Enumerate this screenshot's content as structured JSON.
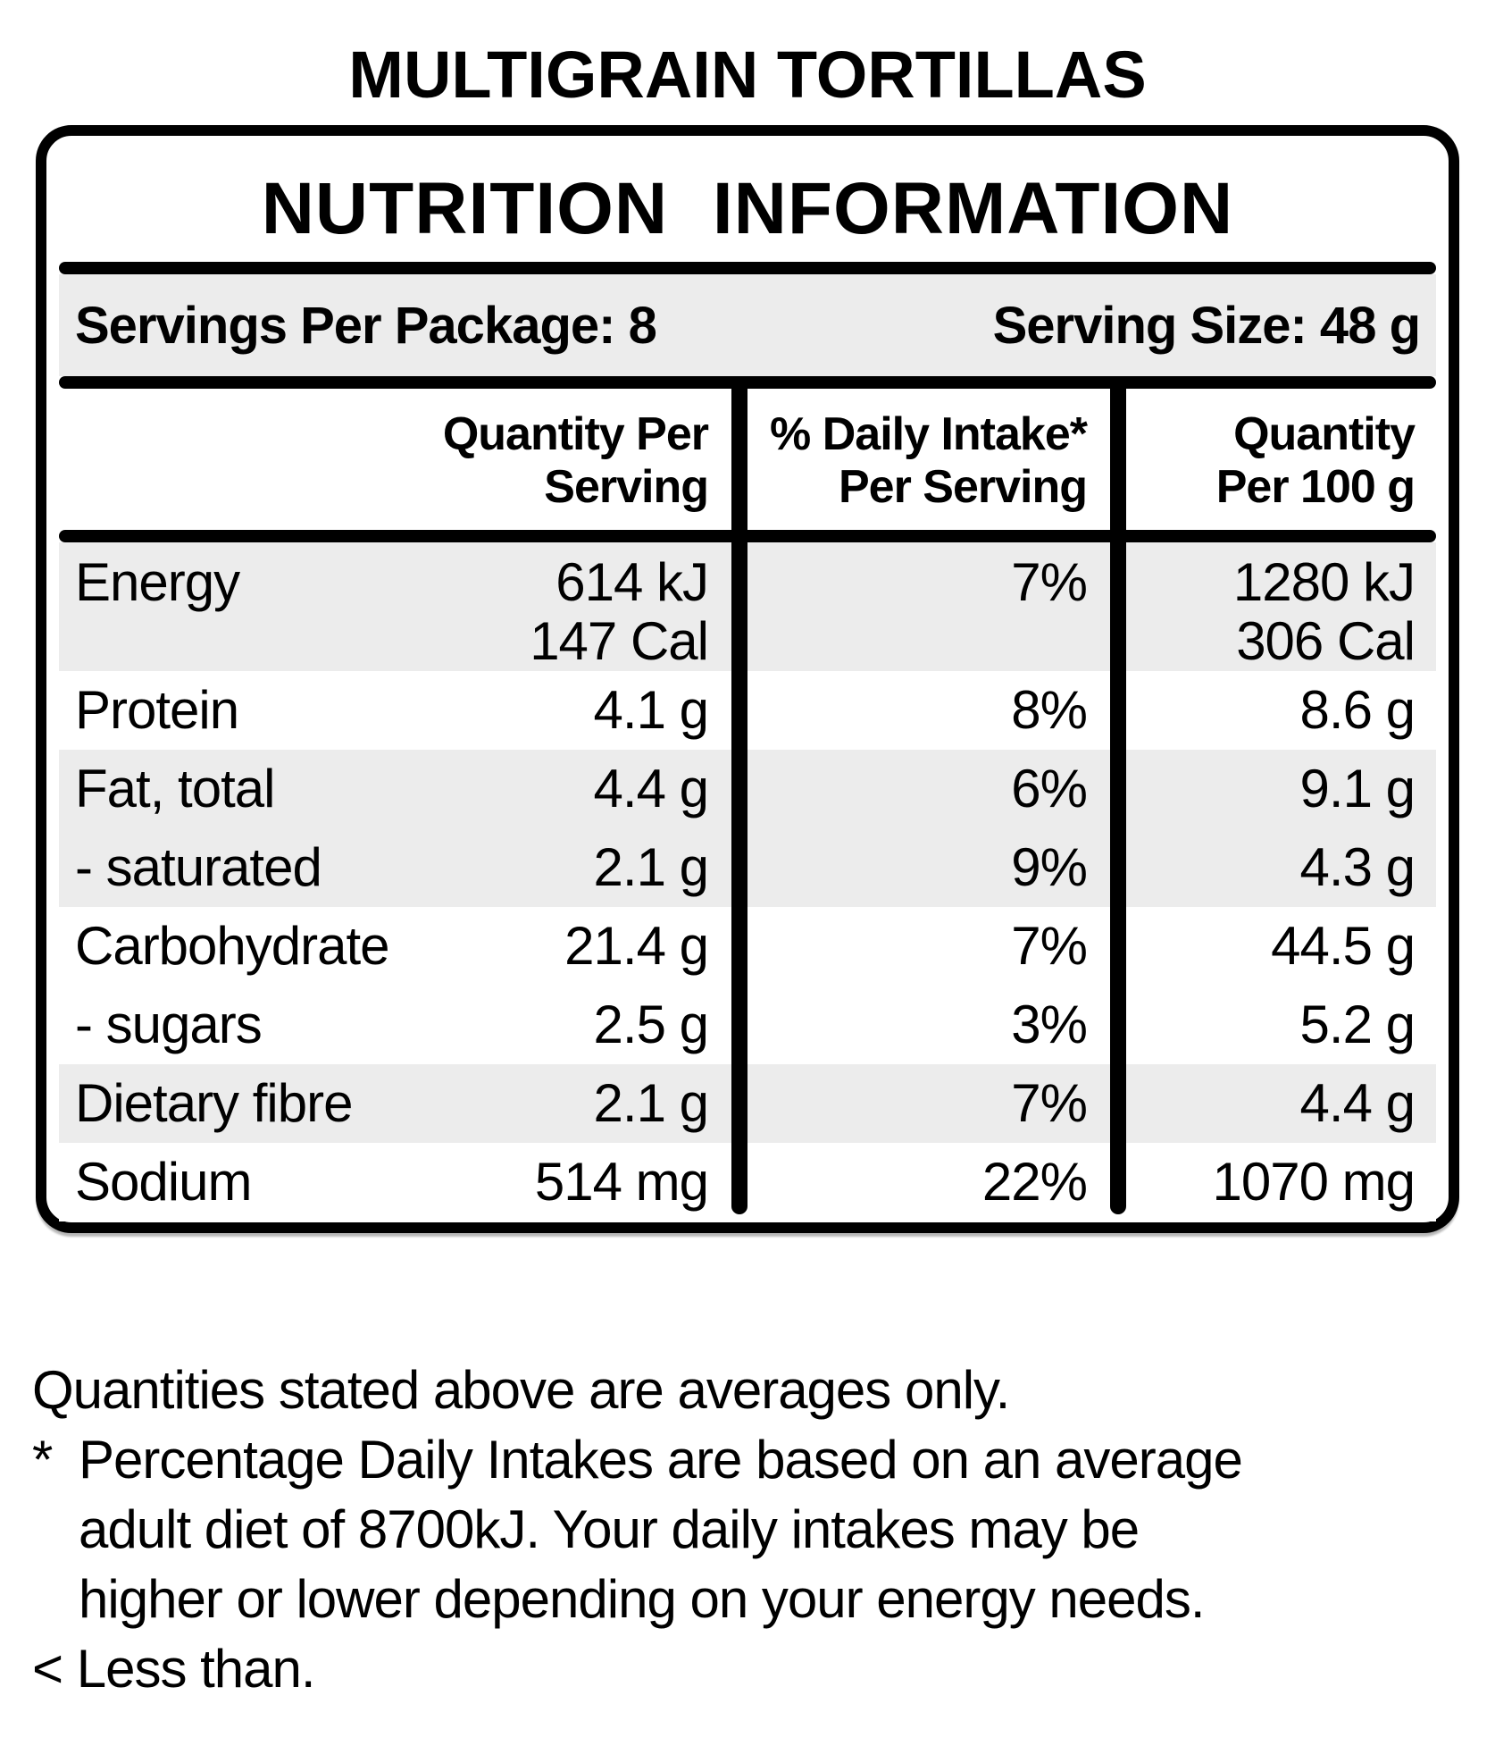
{
  "page_title": "MULTIGRAIN TORTILLAS",
  "panel": {
    "header": "NUTRITION INFORMATION",
    "servings_label": "Servings Per Package: 8",
    "serving_size_label": "Serving Size: 48 g",
    "columns": {
      "qty_serving": "Quantity Per\nServing",
      "daily_intake": "% Daily Intake*\nPer Serving",
      "qty_100g": "Quantity\nPer 100 g"
    },
    "rows": [
      {
        "name": "Energy",
        "qty_serving": "614 kJ\n147 Cal",
        "daily_intake": "7%",
        "qty_100g": "1280 kJ\n306 Cal"
      },
      {
        "name": "Protein",
        "qty_serving": "4.1 g",
        "daily_intake": "8%",
        "qty_100g": "8.6 g"
      },
      {
        "name": "Fat, total",
        "qty_serving": "4.4 g",
        "daily_intake": "6%",
        "qty_100g": "9.1 g"
      },
      {
        "name": "- saturated",
        "qty_serving": "2.1 g",
        "daily_intake": "9%",
        "qty_100g": "4.3 g"
      },
      {
        "name": "Carbohydrate",
        "qty_serving": "21.4 g",
        "daily_intake": "7%",
        "qty_100g": "44.5 g"
      },
      {
        "name": "- sugars",
        "qty_serving": "2.5 g",
        "daily_intake": "3%",
        "qty_100g": "5.2 g"
      },
      {
        "name": "Dietary fibre",
        "qty_serving": "2.1 g",
        "daily_intake": "7%",
        "qty_100g": "4.4 g"
      },
      {
        "name": "Sodium",
        "qty_serving": "514 mg",
        "daily_intake": "22%",
        "qty_100g": "1070 mg"
      }
    ]
  },
  "footer": {
    "line1": "Quantities stated above are averages only.",
    "note_marker": "*",
    "note_line1": "Percentage Daily Intakes are based on an average",
    "note_line2": "adult diet of 8700kJ. Your daily intakes may be",
    "note_line3": "higher or lower depending on your energy needs.",
    "less_than": "< Less than."
  },
  "colors": {
    "ink": "#000000",
    "shade": "#ececec",
    "background": "#ffffff"
  }
}
